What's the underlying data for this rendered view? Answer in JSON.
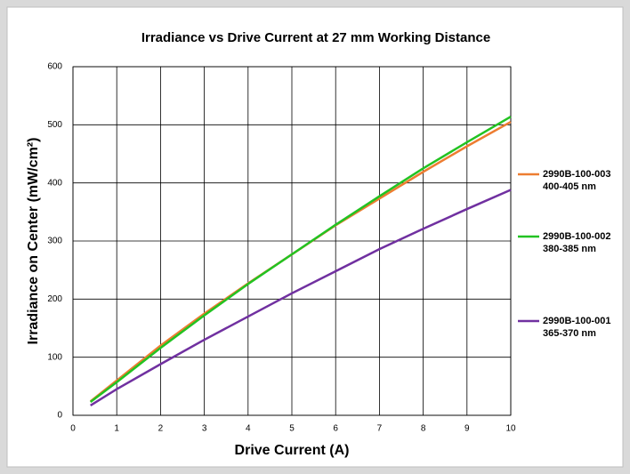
{
  "chart_data": {
    "type": "line",
    "title": "Irradiance vs Drive Current at 27 mm Working Distance",
    "x_label": "Drive Current (A)",
    "y_label": "Irradiance on Center (mW/cm²)",
    "x": [
      0.4,
      1,
      2,
      3,
      4,
      5,
      6,
      7,
      8,
      9,
      10
    ],
    "series": [
      {
        "name": "2990B-100-003\n400-405 nm",
        "color": "#ed7d31",
        "values": [
          24,
          60,
          120,
          175,
          227,
          277,
          327,
          373,
          419,
          463,
          505
        ]
      },
      {
        "name": "2990B-100-002\n380-385 nm",
        "color": "#22c322",
        "values": [
          23,
          57,
          116,
          172,
          226,
          277,
          328,
          377,
          425,
          470,
          514
        ]
      },
      {
        "name": "2990B-100-001\n365-370 nm",
        "color": "#7030a0",
        "values": [
          17,
          45,
          88,
          130,
          170,
          210,
          248,
          286,
          321,
          355,
          388
        ]
      }
    ],
    "xlim": [
      0,
      10
    ],
    "xticks": [
      0,
      1,
      2,
      3,
      4,
      5,
      6,
      7,
      8,
      9,
      10
    ],
    "ylim": [
      0,
      600
    ],
    "yticks": [
      0,
      100,
      200,
      300,
      400,
      500,
      600
    ],
    "grid": true
  }
}
